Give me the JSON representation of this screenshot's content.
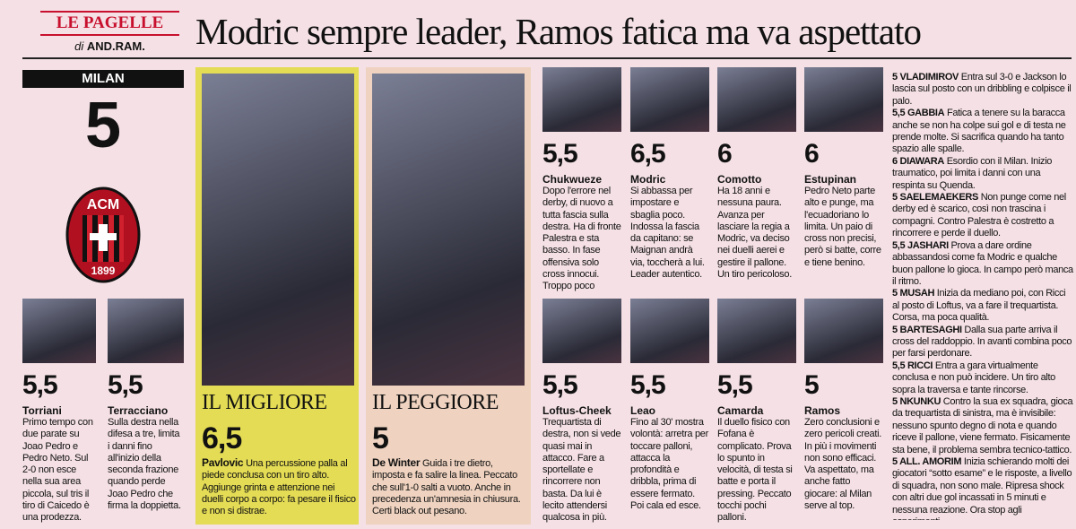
{
  "header": {
    "section": "LE PAGELLE",
    "byline_prefix": "di",
    "byline": "AND.RAM.",
    "title": "Modric sempre leader, Ramos fatica ma va aspettato"
  },
  "team": {
    "name": "MILAN",
    "grade": "5",
    "logo_top": "ACM",
    "logo_bottom": "1899"
  },
  "players": [
    {
      "grade": "5,5",
      "name": "Torriani",
      "text": "Primo tempo con due parate su Joao Pedro e Pedro Neto. Sul 2-0 non esce nella sua area piccola, sul tris il tiro di Caicedo è una prodezza."
    },
    {
      "grade": "5,5",
      "name": "Terracciano",
      "text": "Sulla destra nella difesa a tre, limita i danni fino all'inizio della seconda frazione quando perde Joao Pedro che firma la doppietta."
    },
    {
      "grade": "5,5",
      "name": "Chukwueze",
      "text": "Dopo l'errore nel derby, di nuovo a tutta fascia sulla destra. Ha di fronte Palestra e sta basso. In fase offensiva solo cross innocui. Troppo poco"
    },
    {
      "grade": "6,5",
      "name": "Modric",
      "text": "Si abbassa per impostare e sbaglia poco. Indossa la fascia da capitano: se Maignan andrà via, toccherà a lui. Leader autentico."
    },
    {
      "grade": "6",
      "name": "Comotto",
      "text": "Ha 18 anni e nessuna paura. Avanza per lasciare la regia a Modric, va deciso nei duelli aerei e gestire il pallone. Un tiro pericoloso."
    },
    {
      "grade": "6",
      "name": "Estupinan",
      "text": "Pedro Neto parte alto e punge, ma l'ecuadoriano lo limita. Un paio di cross non precisi, però si batte, corre e tiene benino."
    },
    {
      "grade": "5,5",
      "name": "Loftus-Cheek",
      "text": "Trequartista di destra, non si vede quasi mai in attacco. Fare a sportellate e rincorrere non basta. Da lui è lecito attendersi qualcosa in più."
    },
    {
      "grade": "5,5",
      "name": "Leao",
      "text": "Fino al 30' mostra volontà: arretra per toccare palloni, attacca la profondità e dribbla, prima di essere fermato. Poi cala ed esce."
    },
    {
      "grade": "5,5",
      "name": "Camarda",
      "text": "Il duello fisico con Fofana è complicato. Prova lo spunto in velocità, di testa si batte e porta il pressing. Peccato tocchi pochi palloni."
    },
    {
      "grade": "5",
      "name": "Ramos",
      "text": "Zero conclusioni e zero pericoli creati. In più i movimenti non sono efficaci. Va aspettato, ma anche fatto giocare: al Milan serve al top."
    }
  ],
  "best": {
    "label": "IL MIGLIORE",
    "grade": "6,5",
    "name": "Pavlovic",
    "text": "Una percussione palla al piede conclusa con un tiro alto. Aggiunge grinta e attenzione nei duelli corpo a corpo: fa pesare il fisico e non si distrae."
  },
  "worst": {
    "label": "IL PEGGIORE",
    "grade": "5",
    "name": "De Winter",
    "text": "Guida i tre dietro, imposta e fa salire la linea. Peccato che sull'1-0 salti a vuoto. Anche in precedenza un'amnesia in chiusura. Certi black out pesano."
  },
  "others": [
    {
      "head": "5 VLADIMIROV",
      "text": "Entra sul 3-0 e Jackson lo lascia sul posto con un dribbling e colpisce il palo."
    },
    {
      "head": "5,5 GABBIA",
      "text": "Fatica a tenere su la baracca anche se non ha colpe sui gol e di testa ne prende molte. Si sacrifica quando ha tanto spazio alle spalle."
    },
    {
      "head": "6 DIAWARA",
      "text": "Esordio con il Milan. Inizio traumatico, poi limita i danni con una respinta su Quenda."
    },
    {
      "head": "5 SAELEMAEKERS",
      "text": "Non punge come nel derby ed è scarico, così non trascina i compagni. Contro Palestra è costretto a rincorrere e perde il duello."
    },
    {
      "head": "5,5 JASHARI",
      "text": "Prova a dare ordine abbassandosi come fa Modric e qualche buon pallone lo gioca. In campo però manca il ritmo."
    },
    {
      "head": "5 MUSAH",
      "text": "Inizia da mediano poi, con Ricci al posto di Loftus, va a fare il trequartista. Corsa, ma poca qualità."
    },
    {
      "head": "5 BARTESAGHI",
      "text": "Dalla sua parte arriva il cross del raddoppio. In avanti combina poco per farsi perdonare."
    },
    {
      "head": "5,5 RICCI",
      "text": "Entra a gara virtualmente conclusa e non può incidere. Un tiro alto sopra la traversa e tante rincorse."
    },
    {
      "head": "5 NKUNKU",
      "text": "Contro la sua ex squadra, gioca da trequartista di sinistra, ma è invisibile: nessuno spunto degno di nota e quando riceve il pallone, viene fermato. Fisicamente sta bene, il problema sembra tecnico-tattico."
    },
    {
      "head": "5 ALL. AMORIM",
      "text": "Inizia schierando molti dei giocatori “sotto esame” e le risposte, a livello di squadra, non sono male. Ripresa shock con altri due gol incassati in 5 minuti e nessuna reazione. Ora stop agli esperimenti."
    }
  ]
}
